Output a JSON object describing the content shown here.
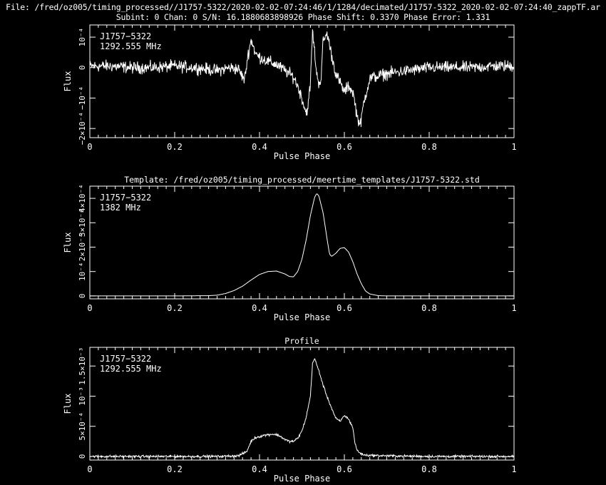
{
  "header": {
    "file_line": "File: /fred/oz005/timing_processed//J1757-5322/2020-02-02-07:24:46/1/1284/decimated/J1757-5322_2020-02-02-07:24:40_zappTF.ar",
    "info_line": "Subint: 0 Chan: 0 S/N: 16.1880683898926 Phase Shift: 0.3370 Phase Error: 1.331"
  },
  "colors": {
    "background": "#000000",
    "foreground": "#ffffff"
  },
  "chart_data": [
    {
      "type": "line",
      "title": "",
      "xlabel": "Pulse Phase",
      "ylabel": "Flux",
      "xlim": [
        0,
        1
      ],
      "ylim": [
        -0.00023,
        0.00014
      ],
      "xticks": [
        0,
        0.2,
        0.4,
        0.6,
        0.8,
        1
      ],
      "xtick_labels": [
        "0",
        "0.2",
        "0.4",
        "0.6",
        "0.8",
        "1"
      ],
      "yticks": [
        -0.0002,
        -0.0001,
        0,
        0.0001
      ],
      "ytick_labels": [
        "−2×10⁻⁴",
        "−10⁻⁴",
        "0",
        "10⁻⁴"
      ],
      "annotation": [
        "J1757−5322",
        "1292.555 MHz"
      ],
      "noise": 1.2e-05,
      "series": [
        {
          "x": [
            0,
            0.05,
            0.1,
            0.15,
            0.2,
            0.25,
            0.3,
            0.33,
            0.35,
            0.362,
            0.365,
            0.372,
            0.38,
            0.385,
            0.39,
            0.4,
            0.42,
            0.44,
            0.46,
            0.48,
            0.49,
            0.5,
            0.51,
            0.515,
            0.52,
            0.525,
            0.53,
            0.535,
            0.54,
            0.545,
            0.55,
            0.56,
            0.57,
            0.58,
            0.59,
            0.6,
            0.61,
            0.62,
            0.625,
            0.63,
            0.638,
            0.645,
            0.66,
            0.7,
            0.75,
            0.8,
            0.85,
            0.9,
            0.95,
            1.0
          ],
          "values": [
            5e-06,
            5e-06,
            0,
            0,
            5e-06,
            0,
            -1e-05,
            0,
            -5e-06,
            -3.5e-05,
            -4e-05,
            3.5e-05,
            9e-05,
            7.5e-05,
            4.5e-05,
            3.5e-05,
            2e-05,
            1e-05,
            -1e-05,
            -3e-05,
            -6e-05,
            -0.0001,
            -0.00015,
            -0.00012,
            -5e-05,
            0.00012,
            5e-05,
            -2.5e-05,
            -5e-05,
            -4e-05,
            9e-05,
            0.00011,
            4e-05,
            -2e-05,
            -5e-05,
            -8e-05,
            -6e-05,
            -8e-05,
            -0.000115,
            -0.00016,
            -0.00019,
            -0.00012,
            -3.5e-05,
            -2e-05,
            -1e-05,
            0,
            0,
            0,
            5e-06,
            5e-06
          ]
        }
      ]
    },
    {
      "type": "line",
      "title": "Template: /fred/oz005/timing_processed/meertime_templates/J1757-5322.std",
      "xlabel": "Pulse Phase",
      "ylabel": "Flux",
      "xlim": [
        0,
        1
      ],
      "ylim": [
        -1.2e-05,
        0.00045
      ],
      "xticks": [
        0,
        0.2,
        0.4,
        0.6,
        0.8,
        1
      ],
      "xtick_labels": [
        "0",
        "0.2",
        "0.4",
        "0.6",
        "0.8",
        "1"
      ],
      "yticks": [
        0,
        0.0001,
        0.0002,
        0.0003,
        0.0004
      ],
      "ytick_labels": [
        "0",
        "10⁻⁴",
        "2×10⁻⁴",
        "3×10⁻⁴",
        "4×10⁻⁴"
      ],
      "annotation": [
        "J1757−5322",
        "1382 MHz"
      ],
      "noise": 0,
      "series": [
        {
          "x": [
            0,
            0.1,
            0.2,
            0.28,
            0.3,
            0.32,
            0.34,
            0.36,
            0.38,
            0.4,
            0.42,
            0.44,
            0.46,
            0.47,
            0.48,
            0.49,
            0.5,
            0.51,
            0.52,
            0.53,
            0.535,
            0.54,
            0.55,
            0.56,
            0.565,
            0.57,
            0.58,
            0.59,
            0.6,
            0.61,
            0.62,
            0.63,
            0.64,
            0.65,
            0.66,
            0.68,
            0.7,
            0.8,
            0.9,
            1.0
          ],
          "values": [
            0,
            0,
            0,
            1e-06,
            3e-06,
            1e-05,
            2.2e-05,
            4e-05,
            6.5e-05,
            8.8e-05,
            0.0001,
            0.000102,
            9e-05,
            8e-05,
            7.8e-05,
            0.0001,
            0.00015,
            0.00023,
            0.00033,
            0.000405,
            0.00042,
            0.00041,
            0.00034,
            0.000225,
            0.000172,
            0.000162,
            0.000175,
            0.000195,
            0.000198,
            0.00018,
            0.00014,
            9e-05,
            5e-05,
            2e-05,
            8e-06,
            1e-06,
            0,
            0,
            0,
            0
          ]
        }
      ]
    },
    {
      "type": "line",
      "title": "Profile",
      "xlabel": "Pulse Phase",
      "ylabel": "Flux",
      "xlim": [
        0,
        1
      ],
      "ylim": [
        -6e-05,
        0.00181
      ],
      "xticks": [
        0,
        0.2,
        0.4,
        0.6,
        0.8,
        1
      ],
      "xtick_labels": [
        "0",
        "0.2",
        "0.4",
        "0.6",
        "0.8",
        "1"
      ],
      "yticks": [
        0,
        0.0005,
        0.001,
        0.0015
      ],
      "ytick_labels": [
        "0",
        "5×10⁻⁴",
        "10⁻³",
        "1.5×10⁻³"
      ],
      "annotation": [
        "J1757−5322",
        "1292.555 MHz"
      ],
      "noise": 1.2e-05,
      "series": [
        {
          "x": [
            0,
            0.1,
            0.2,
            0.3,
            0.35,
            0.37,
            0.38,
            0.39,
            0.4,
            0.41,
            0.42,
            0.43,
            0.44,
            0.45,
            0.46,
            0.47,
            0.48,
            0.49,
            0.5,
            0.51,
            0.52,
            0.525,
            0.53,
            0.54,
            0.55,
            0.56,
            0.57,
            0.58,
            0.59,
            0.6,
            0.61,
            0.62,
            0.625,
            0.63,
            0.64,
            0.65,
            0.7,
            0.8,
            0.9,
            1.0
          ],
          "values": [
            0,
            0,
            0,
            0,
            1e-05,
            8e-05,
            0.00025,
            0.00031,
            0.00033,
            0.00035,
            0.00036,
            0.00037,
            0.00036,
            0.00033,
            0.00028,
            0.00025,
            0.00025,
            0.0003,
            0.00042,
            0.00065,
            0.001,
            0.00155,
            0.00162,
            0.00142,
            0.00118,
            0.00098,
            0.0008,
            0.00063,
            0.00058,
            0.00068,
            0.00062,
            0.00048,
            0.00022,
            0.0001,
            4e-05,
            2e-05,
            1e-05,
            0,
            0,
            0
          ]
        }
      ]
    }
  ]
}
